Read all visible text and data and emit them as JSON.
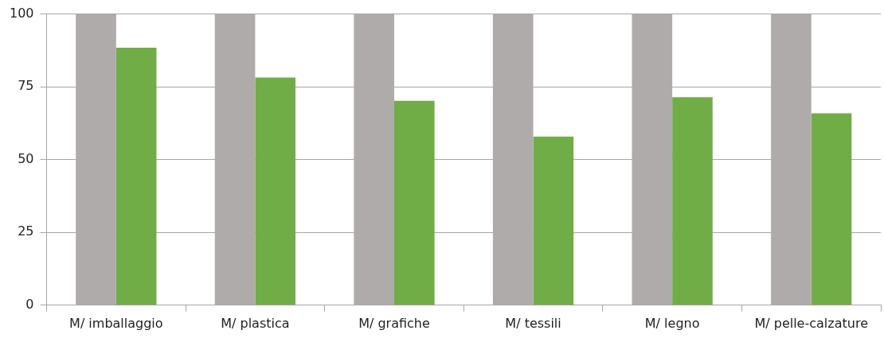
{
  "chart_data": {
    "type": "bar",
    "categories": [
      "M/ imballaggio",
      "M/ plastica",
      "M/ grafiche",
      "M/ tessili",
      "M/ legno",
      "M/ pelle-calzature"
    ],
    "series": [
      {
        "color": "#afabaa",
        "values": [
          100,
          100,
          100,
          100,
          100,
          100
        ]
      },
      {
        "color": "#70ad47",
        "values": [
          88.4,
          78.2,
          70.2,
          57.9,
          71.4,
          65.9
        ]
      }
    ],
    "ylim": [
      0,
      100
    ],
    "yticks": [
      0,
      25,
      50,
      75,
      100
    ],
    "grid": "y",
    "legend": false
  }
}
